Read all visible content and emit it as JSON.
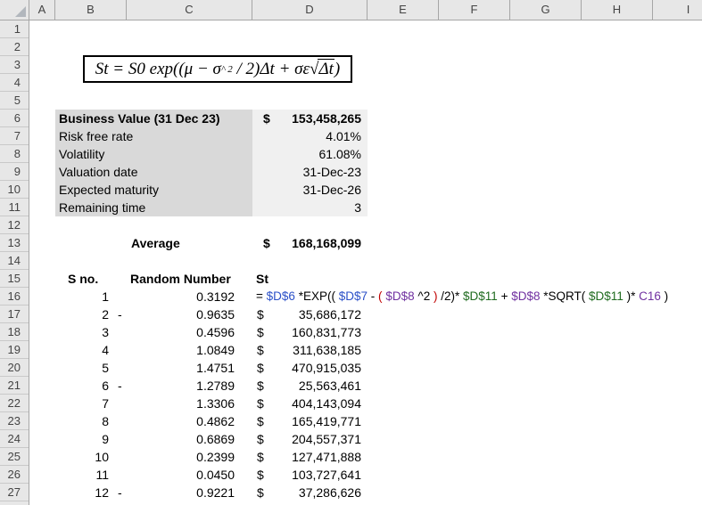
{
  "grid": {
    "column_headers": [
      "A",
      "B",
      "C",
      "D",
      "E",
      "F",
      "G",
      "H",
      "I"
    ],
    "row_numbers": [
      "1",
      "2",
      "3",
      "4",
      "5",
      "6",
      "7",
      "8",
      "9",
      "10",
      "11",
      "12",
      "13",
      "14",
      "15",
      "16",
      "17",
      "18",
      "19",
      "20",
      "21",
      "22",
      "23",
      "24",
      "25",
      "26",
      "27"
    ]
  },
  "equation": {
    "pre": "St = S0 exp((μ − σ",
    "power": "^ 2",
    "mid": " / 2)Δt + σε",
    "radical": "√",
    "radicand": "Δt",
    "close": ")"
  },
  "parameters": {
    "rows": [
      {
        "label": "Business Value (31 Dec 23)",
        "cur": "$",
        "value": "153,458,265"
      },
      {
        "label": "Risk free rate",
        "cur": "",
        "value": "4.01%"
      },
      {
        "label": "Volatility",
        "cur": "",
        "value": "61.08%"
      },
      {
        "label": "Valuation date",
        "cur": "",
        "value": "31-Dec-23"
      },
      {
        "label": "Expected maturity",
        "cur": "",
        "value": "31-Dec-26"
      },
      {
        "label": "Remaining time",
        "cur": "",
        "value": "3"
      }
    ]
  },
  "average": {
    "label": "Average",
    "cur": "$",
    "value": "168,168,099"
  },
  "sim_table": {
    "headers": {
      "sno": "S no.",
      "random": "Random Number",
      "st": "St"
    },
    "formula_tokens": [
      {
        "t": "=",
        "c": "k"
      },
      {
        "t": "$D$6",
        "c": "b"
      },
      {
        "t": "*EXP((",
        "c": "k"
      },
      {
        "t": "$D$7",
        "c": "b"
      },
      {
        "t": "-",
        "c": "k"
      },
      {
        "t": "(",
        "c": "r"
      },
      {
        "t": "$D$8",
        "c": "p"
      },
      {
        "t": "^2",
        "c": "k"
      },
      {
        "t": ")",
        "c": "r"
      },
      {
        "t": "/2)*",
        "c": "k"
      },
      {
        "t": "$D$11",
        "c": "g"
      },
      {
        "t": "+",
        "c": "k"
      },
      {
        "t": "$D$8",
        "c": "p"
      },
      {
        "t": "*SQRT(",
        "c": "k"
      },
      {
        "t": "$D$11",
        "c": "g"
      },
      {
        "t": ")*",
        "c": "k"
      },
      {
        "t": "C16",
        "c": "p"
      },
      {
        "t": ")",
        "c": "k"
      }
    ],
    "rows": [
      {
        "sno": "1",
        "neg": "",
        "random": "0.3192",
        "cur": "",
        "st": ""
      },
      {
        "sno": "2",
        "neg": "-",
        "random": "0.9635",
        "cur": "$",
        "st": "35,686,172"
      },
      {
        "sno": "3",
        "neg": "",
        "random": "0.4596",
        "cur": "$",
        "st": "160,831,773"
      },
      {
        "sno": "4",
        "neg": "",
        "random": "1.0849",
        "cur": "$",
        "st": "311,638,185"
      },
      {
        "sno": "5",
        "neg": "",
        "random": "1.4751",
        "cur": "$",
        "st": "470,915,035"
      },
      {
        "sno": "6",
        "neg": "-",
        "random": "1.2789",
        "cur": "$",
        "st": "25,563,461"
      },
      {
        "sno": "7",
        "neg": "",
        "random": "1.3306",
        "cur": "$",
        "st": "404,143,094"
      },
      {
        "sno": "8",
        "neg": "",
        "random": "0.4862",
        "cur": "$",
        "st": "165,419,771"
      },
      {
        "sno": "9",
        "neg": "",
        "random": "0.6869",
        "cur": "$",
        "st": "204,557,371"
      },
      {
        "sno": "10",
        "neg": "",
        "random": "0.2399",
        "cur": "$",
        "st": "127,471,888"
      },
      {
        "sno": "11",
        "neg": "",
        "random": "0.0450",
        "cur": "$",
        "st": "103,727,641"
      },
      {
        "sno": "12",
        "neg": "-",
        "random": "0.9221",
        "cur": "$",
        "st": "37,286,626"
      }
    ]
  },
  "colors": {
    "header_bg": "#e7e7e7",
    "header_border": "#a6a6a6",
    "label_fill": "#d9d9d9",
    "value_fill": "#f0f0f0",
    "ref_blue": "#2b50c8",
    "ref_red": "#c00000",
    "ref_purple": "#7030a0",
    "ref_green": "#1f6b1f"
  }
}
